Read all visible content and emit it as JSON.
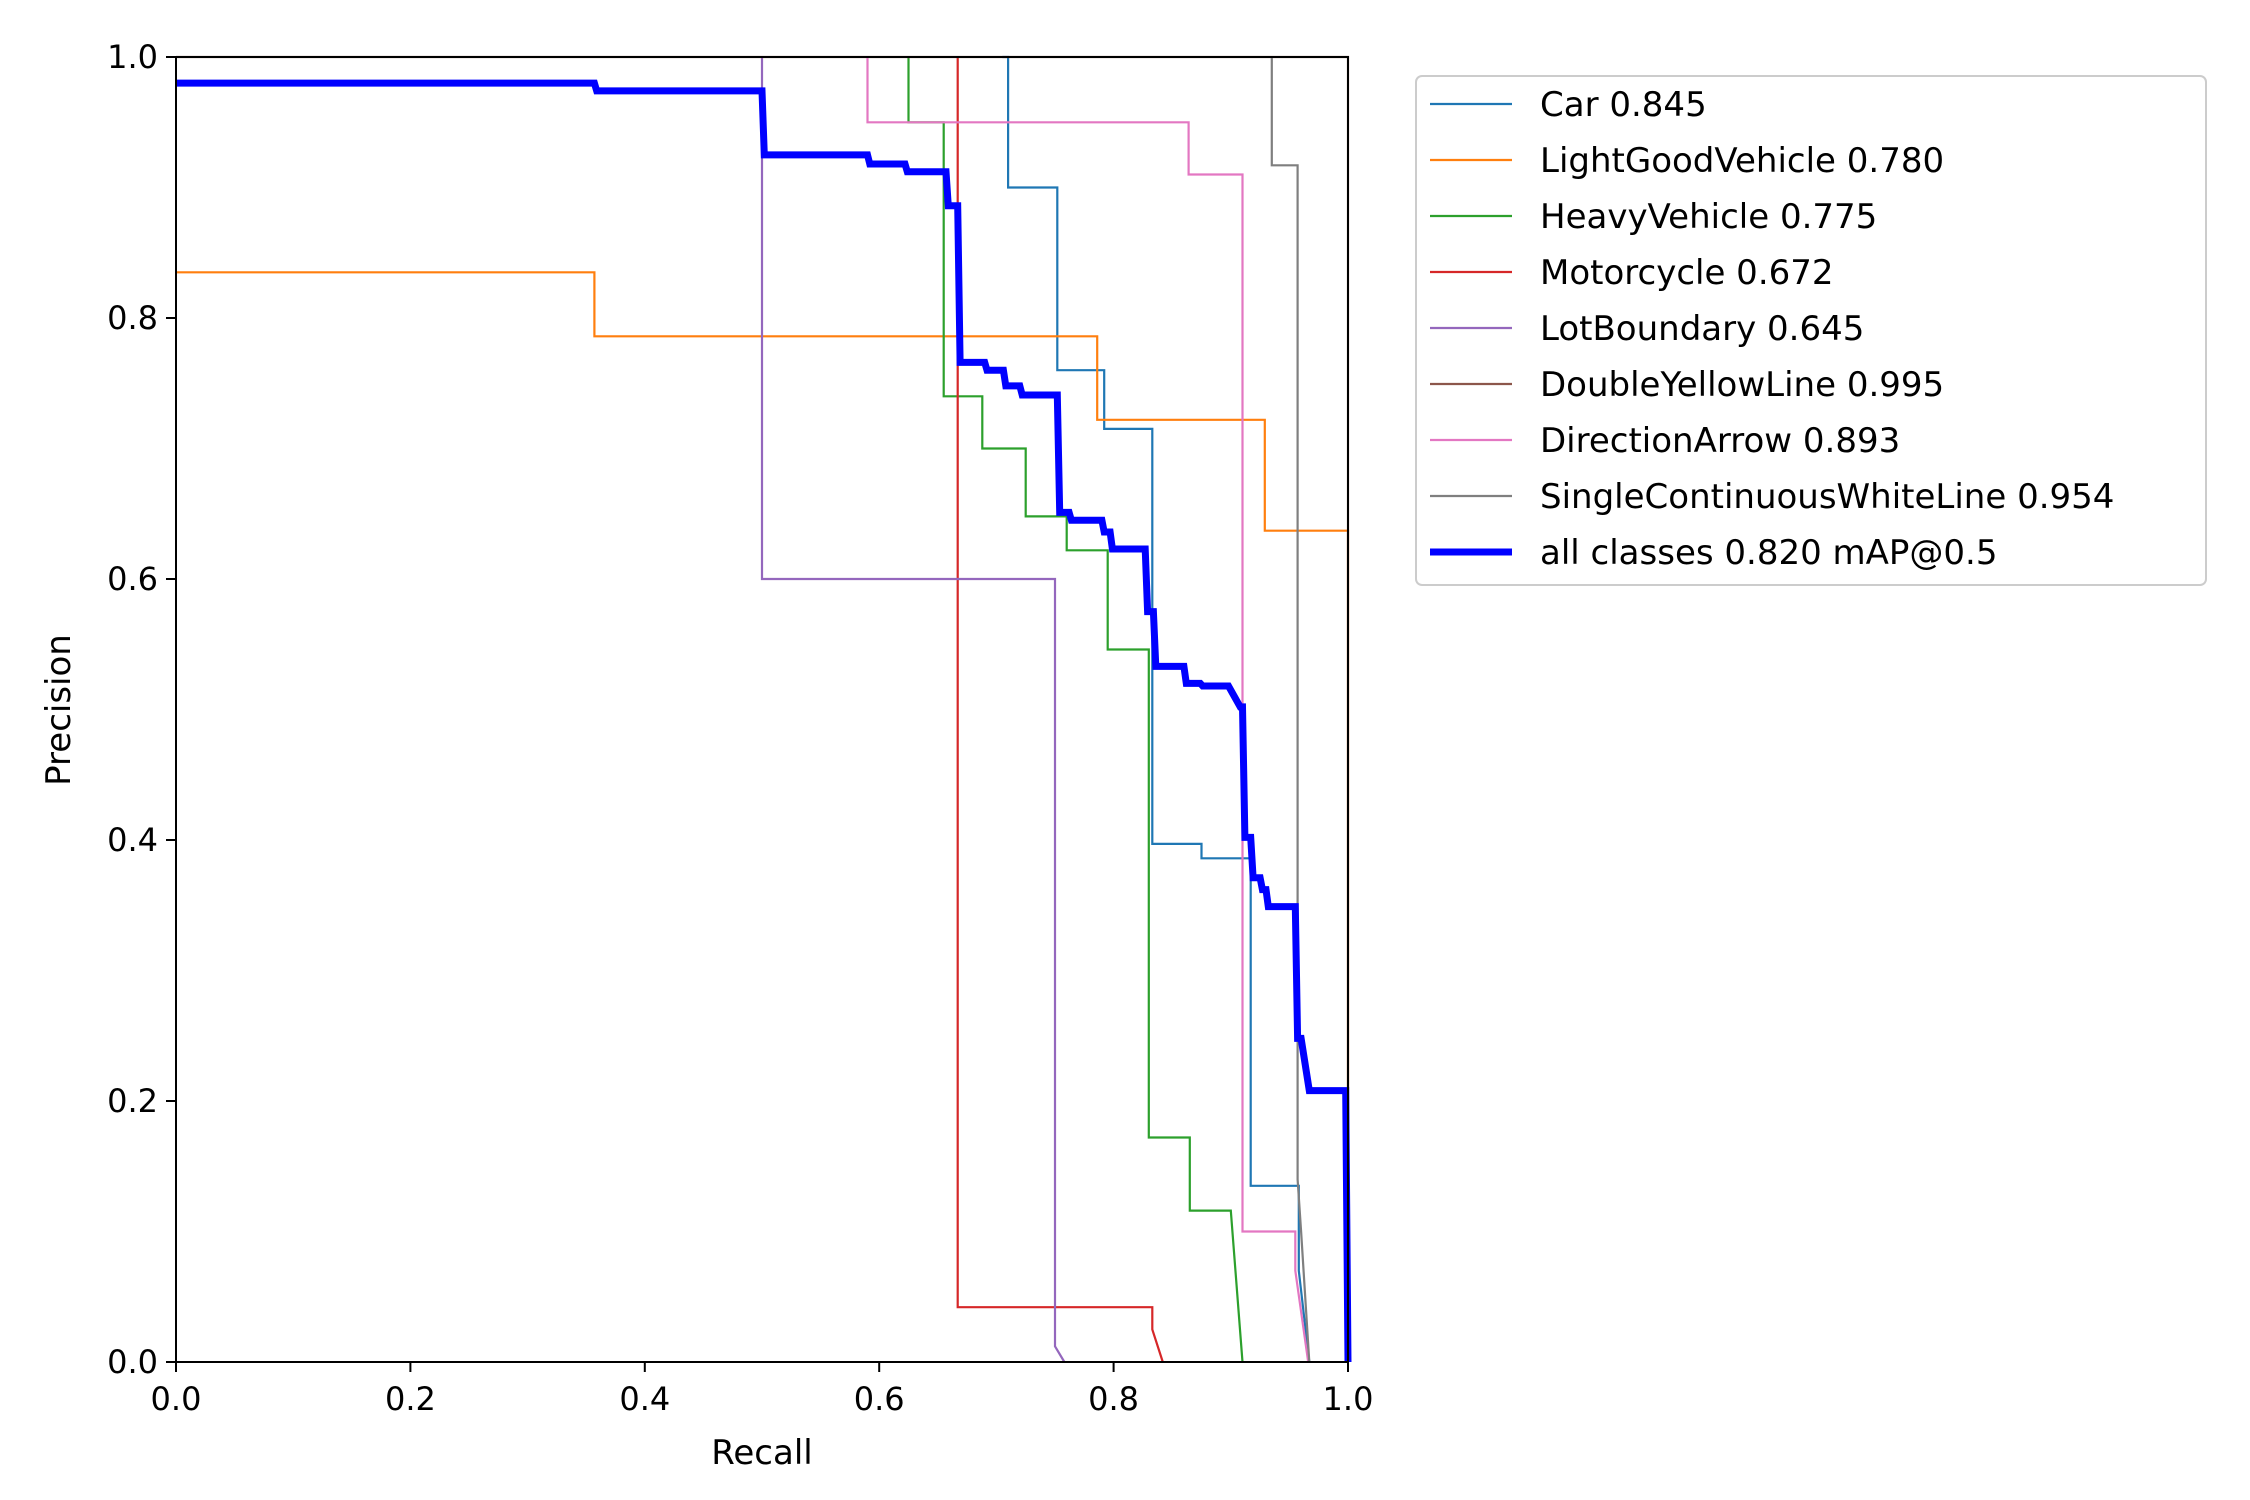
{
  "chart_data": {
    "type": "line",
    "title": "",
    "xlabel": "Recall",
    "ylabel": "Precision",
    "xlim": [
      0,
      1
    ],
    "ylim": [
      0,
      1
    ],
    "xticks": [
      "0.0",
      "0.2",
      "0.4",
      "0.6",
      "0.8",
      "1.0"
    ],
    "yticks": [
      "0.0",
      "0.2",
      "0.4",
      "0.6",
      "0.8",
      "1.0"
    ],
    "grid": false,
    "legend_position": "outside-right",
    "series": [
      {
        "name": "Car 0.845",
        "color": "#1f77b4",
        "bold": false,
        "points": [
          [
            0.705,
            1.0
          ],
          [
            0.71,
            1.0
          ],
          [
            0.71,
            0.9
          ],
          [
            0.752,
            0.9
          ],
          [
            0.752,
            0.76
          ],
          [
            0.792,
            0.76
          ],
          [
            0.792,
            0.715
          ],
          [
            0.833,
            0.715
          ],
          [
            0.833,
            0.397
          ],
          [
            0.875,
            0.397
          ],
          [
            0.875,
            0.386
          ],
          [
            0.917,
            0.386
          ],
          [
            0.917,
            0.135
          ],
          [
            0.958,
            0.135
          ],
          [
            0.958,
            0.07
          ],
          [
            0.967,
            0.0
          ]
        ]
      },
      {
        "name": "LightGoodVehicle 0.780",
        "color": "#ff7f0e",
        "bold": false,
        "points": [
          [
            0.0,
            0.835
          ],
          [
            0.357,
            0.835
          ],
          [
            0.357,
            0.786
          ],
          [
            0.786,
            0.786
          ],
          [
            0.786,
            0.722
          ],
          [
            0.929,
            0.722
          ],
          [
            0.929,
            0.637
          ],
          [
            1.0,
            0.637
          ],
          [
            1.0,
            0.0
          ]
        ]
      },
      {
        "name": "HeavyVehicle 0.775",
        "color": "#2ca02c",
        "bold": false,
        "points": [
          [
            0.625,
            1.0
          ],
          [
            0.625,
            0.95
          ],
          [
            0.655,
            0.95
          ],
          [
            0.655,
            0.74
          ],
          [
            0.688,
            0.74
          ],
          [
            0.688,
            0.7
          ],
          [
            0.725,
            0.7
          ],
          [
            0.725,
            0.648
          ],
          [
            0.76,
            0.648
          ],
          [
            0.76,
            0.622
          ],
          [
            0.795,
            0.622
          ],
          [
            0.795,
            0.546
          ],
          [
            0.83,
            0.546
          ],
          [
            0.83,
            0.172
          ],
          [
            0.865,
            0.172
          ],
          [
            0.865,
            0.116
          ],
          [
            0.9,
            0.116
          ],
          [
            0.91,
            0.0
          ]
        ]
      },
      {
        "name": "Motorcycle 0.672",
        "color": "#d62728",
        "bold": false,
        "points": [
          [
            0.667,
            1.0
          ],
          [
            0.667,
            0.042
          ],
          [
            0.833,
            0.042
          ],
          [
            0.833,
            0.025
          ],
          [
            0.842,
            0.0
          ]
        ]
      },
      {
        "name": "LotBoundary 0.645",
        "color": "#9467bd",
        "bold": false,
        "points": [
          [
            0.5,
            1.0
          ],
          [
            0.5,
            0.6
          ],
          [
            0.75,
            0.6
          ],
          [
            0.75,
            0.012
          ],
          [
            0.758,
            0.0
          ]
        ]
      },
      {
        "name": "DoubleYellowLine 0.995",
        "color": "#8c564b",
        "bold": false,
        "points": [
          [
            0.0,
            1.0
          ],
          [
            1.0,
            1.0
          ],
          [
            1.0,
            0.0
          ]
        ]
      },
      {
        "name": "DirectionArrow 0.893",
        "color": "#e377c2",
        "bold": false,
        "points": [
          [
            0.59,
            1.0
          ],
          [
            0.59,
            0.95
          ],
          [
            0.864,
            0.95
          ],
          [
            0.864,
            0.91
          ],
          [
            0.91,
            0.91
          ],
          [
            0.91,
            0.1
          ],
          [
            0.955,
            0.1
          ],
          [
            0.955,
            0.07
          ],
          [
            0.966,
            0.0
          ]
        ]
      },
      {
        "name": "SingleContinuousWhiteLine 0.954",
        "color": "#7f7f7f",
        "bold": false,
        "points": [
          [
            0.935,
            1.0
          ],
          [
            0.935,
            0.917
          ],
          [
            0.957,
            0.917
          ],
          [
            0.957,
            0.14
          ],
          [
            0.96,
            0.1
          ],
          [
            0.967,
            0.0
          ]
        ]
      },
      {
        "name": "all classes 0.820 mAP@0.5",
        "color": "#0000ff",
        "bold": true,
        "points": [
          [
            0.0,
            0.98
          ],
          [
            0.357,
            0.98
          ],
          [
            0.359,
            0.974
          ],
          [
            0.5,
            0.974
          ],
          [
            0.502,
            0.925
          ],
          [
            0.59,
            0.925
          ],
          [
            0.592,
            0.918
          ],
          [
            0.622,
            0.918
          ],
          [
            0.624,
            0.912
          ],
          [
            0.657,
            0.912
          ],
          [
            0.659,
            0.886
          ],
          [
            0.667,
            0.886
          ],
          [
            0.669,
            0.766
          ],
          [
            0.69,
            0.766
          ],
          [
            0.692,
            0.76
          ],
          [
            0.706,
            0.76
          ],
          [
            0.708,
            0.748
          ],
          [
            0.72,
            0.748
          ],
          [
            0.722,
            0.741
          ],
          [
            0.752,
            0.741
          ],
          [
            0.754,
            0.651
          ],
          [
            0.762,
            0.651
          ],
          [
            0.764,
            0.645
          ],
          [
            0.79,
            0.645
          ],
          [
            0.792,
            0.636
          ],
          [
            0.797,
            0.636
          ],
          [
            0.799,
            0.623
          ],
          [
            0.827,
            0.623
          ],
          [
            0.829,
            0.575
          ],
          [
            0.834,
            0.575
          ],
          [
            0.836,
            0.533
          ],
          [
            0.86,
            0.533
          ],
          [
            0.862,
            0.52
          ],
          [
            0.874,
            0.52
          ],
          [
            0.876,
            0.518
          ],
          [
            0.898,
            0.518
          ],
          [
            0.908,
            0.502
          ],
          [
            0.91,
            0.502
          ],
          [
            0.912,
            0.402
          ],
          [
            0.917,
            0.402
          ],
          [
            0.919,
            0.371
          ],
          [
            0.925,
            0.371
          ],
          [
            0.927,
            0.362
          ],
          [
            0.93,
            0.362
          ],
          [
            0.932,
            0.349
          ],
          [
            0.955,
            0.349
          ],
          [
            0.957,
            0.248
          ],
          [
            0.96,
            0.248
          ],
          [
            0.967,
            0.208
          ],
          [
            0.998,
            0.208
          ],
          [
            1.0,
            0.0
          ]
        ]
      }
    ]
  }
}
